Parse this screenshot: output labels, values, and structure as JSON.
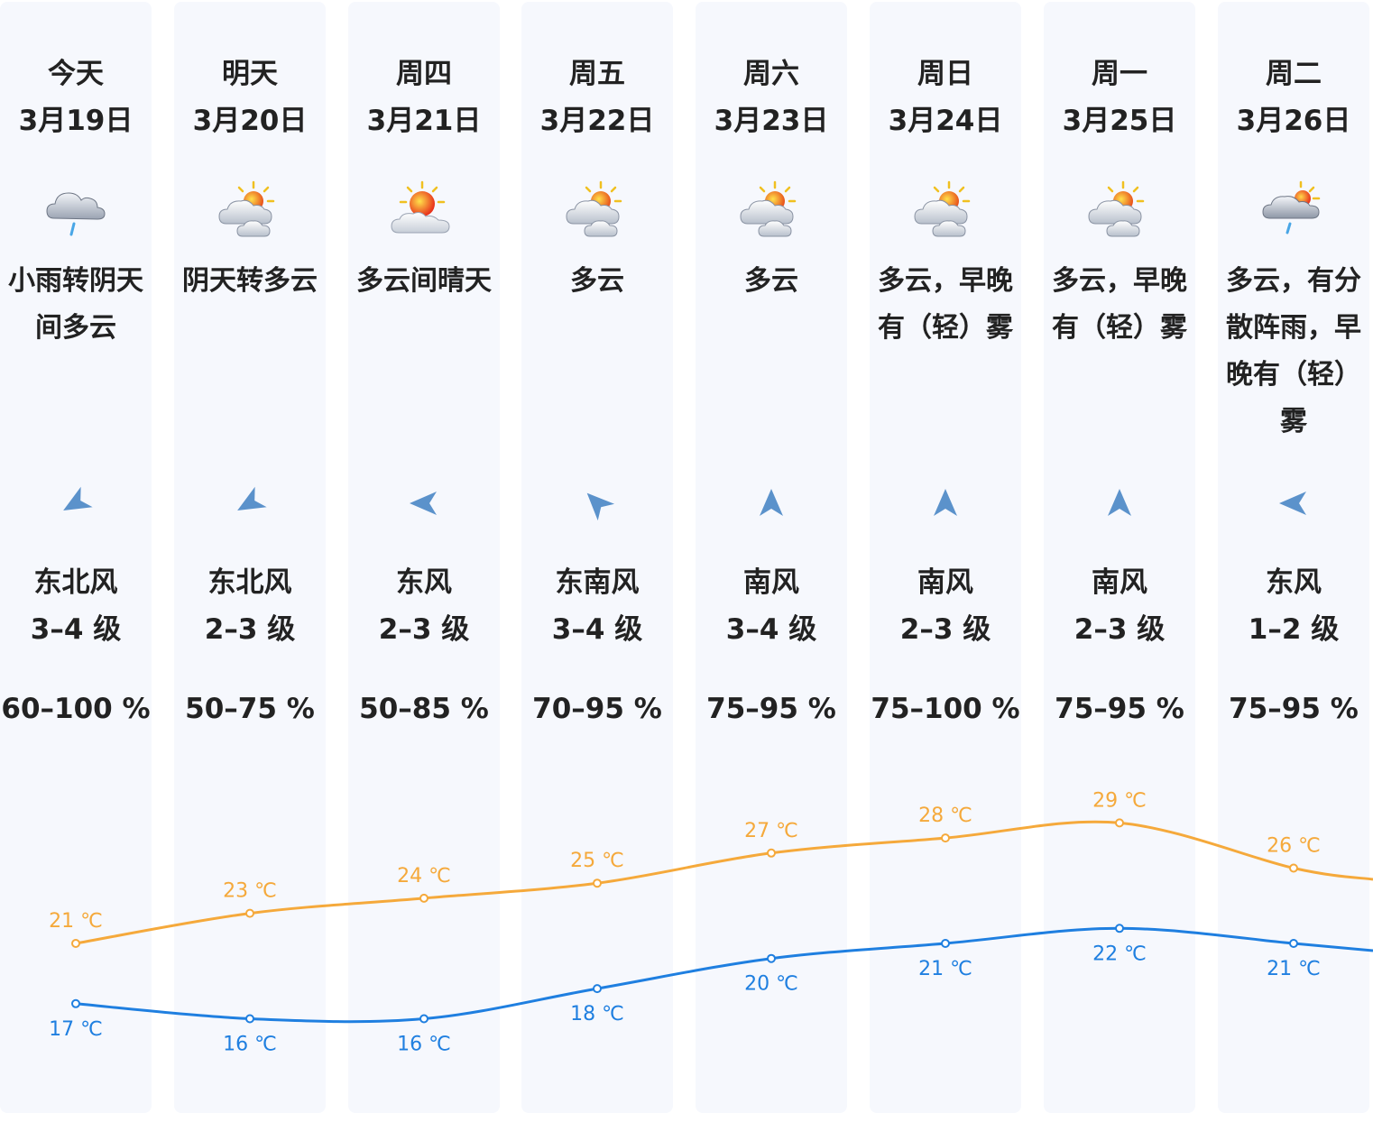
{
  "days": [
    {
      "day": "今天",
      "date": "3月19日",
      "icon": "light-rain-icon",
      "desc": "小雨转阴天间多云",
      "wind_dir": "东北风",
      "wind_level": "3–4 级",
      "wind_arrow_deg": 240,
      "humidity": "60–100 %"
    },
    {
      "day": "明天",
      "date": "3月20日",
      "icon": "partly-cloudy-icon",
      "desc": "阴天转多云",
      "wind_dir": "东北风",
      "wind_level": "2–3 级",
      "wind_arrow_deg": 240,
      "humidity": "50–75 %"
    },
    {
      "day": "周四",
      "date": "3月21日",
      "icon": "sunny-intervals-icon",
      "desc": "多云间晴天",
      "wind_dir": "东风",
      "wind_level": "2–3 级",
      "wind_arrow_deg": 270,
      "humidity": "50–85 %"
    },
    {
      "day": "周五",
      "date": "3月22日",
      "icon": "partly-cloudy-icon",
      "desc": "多云",
      "wind_dir": "东南风",
      "wind_level": "3–4 级",
      "wind_arrow_deg": 315,
      "humidity": "70–95 %"
    },
    {
      "day": "周六",
      "date": "3月23日",
      "icon": "partly-cloudy-icon",
      "desc": "多云",
      "wind_dir": "南风",
      "wind_level": "3–4 级",
      "wind_arrow_deg": 0,
      "humidity": "75–95 %"
    },
    {
      "day": "周日",
      "date": "3月24日",
      "icon": "partly-cloudy-icon",
      "desc": "多云，早晚有（轻）雾",
      "wind_dir": "南风",
      "wind_level": "2–3 级",
      "wind_arrow_deg": 0,
      "humidity": "75–100 %"
    },
    {
      "day": "周一",
      "date": "3月25日",
      "icon": "partly-cloudy-icon",
      "desc": "多云，早晚有（轻）雾",
      "wind_dir": "南风",
      "wind_level": "2–3 级",
      "wind_arrow_deg": 0,
      "humidity": "75–95 %"
    },
    {
      "day": "周二",
      "date": "3月26日",
      "icon": "cloudy-shower-icon",
      "desc": "多云，有分散阵雨，早晚有（轻）雾",
      "wind_dir": "东风",
      "wind_level": "1–2 级",
      "wind_arrow_deg": 270,
      "humidity": "75–95 %"
    }
  ],
  "colors": {
    "high": "#f5a93b",
    "low": "#1f7fe0",
    "arrow": "#4a86c5"
  },
  "chart_data": {
    "type": "line",
    "x": [
      "3月19日",
      "3月20日",
      "3月21日",
      "3月22日",
      "3月23日",
      "3月24日",
      "3月25日",
      "3月26日"
    ],
    "series": [
      {
        "values": [
          21,
          23,
          24,
          25,
          27,
          28,
          29,
          26
        ],
        "labels": [
          "21 ℃",
          "23 ℃",
          "24 ℃",
          "25 ℃",
          "27 ℃",
          "28 ℃",
          "29 ℃",
          "26 ℃"
        ]
      },
      {
        "values": [
          17,
          16,
          16,
          18,
          20,
          21,
          22,
          21
        ],
        "labels": [
          "17 ℃",
          "16 ℃",
          "16 ℃",
          "18 ℃",
          "20 ℃",
          "21 ℃",
          "22 ℃",
          "21 ℃"
        ]
      }
    ],
    "unit": "℃",
    "grid": false
  }
}
